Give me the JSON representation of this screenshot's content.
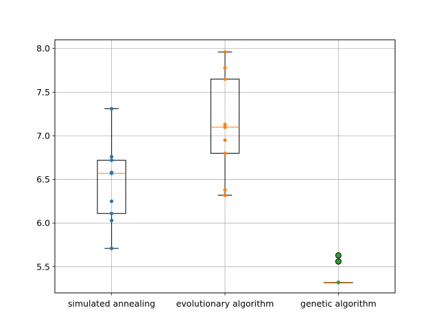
{
  "chart_data": {
    "type": "box",
    "title": "",
    "xlabel": "",
    "ylabel": "",
    "categories": [
      "simulated annealing",
      "evolutionary algorithm",
      "genetic algorithm"
    ],
    "ylim": [
      5.2,
      8.1
    ],
    "yticks": [
      5.5,
      6.0,
      6.5,
      7.0,
      7.5,
      8.0
    ],
    "ytick_labels": [
      "5.5",
      "6.0",
      "6.5",
      "7.0",
      "7.5",
      "8.0"
    ],
    "grid": true,
    "boxes": [
      {
        "category": "simulated annealing",
        "whislo": 5.71,
        "q1": 6.11,
        "med": 6.57,
        "q3": 6.72,
        "whishi": 7.31,
        "fliers": []
      },
      {
        "category": "evolutionary algorithm",
        "whislo": 6.32,
        "q1": 6.8,
        "med": 7.1,
        "q3": 7.65,
        "whishi": 7.96,
        "fliers": []
      },
      {
        "category": "genetic algorithm",
        "whislo": 5.32,
        "q1": 5.32,
        "med": 5.32,
        "q3": 5.32,
        "whishi": 5.32,
        "fliers": [
          5.56,
          5.63
        ]
      }
    ],
    "series": [
      {
        "category": "simulated annealing",
        "color": "#1f77b4",
        "values": [
          7.31,
          6.76,
          6.72,
          6.58,
          6.57,
          6.25,
          6.11,
          6.03,
          5.71
        ]
      },
      {
        "category": "evolutionary algorithm",
        "color": "#ff7f0e",
        "values": [
          7.96,
          7.78,
          7.65,
          7.13,
          7.1,
          6.95,
          6.8,
          6.38,
          6.32
        ]
      },
      {
        "category": "genetic algorithm",
        "color": "#2ca02c",
        "values": [
          5.32,
          5.32,
          5.32,
          5.32,
          5.32,
          5.32,
          5.32,
          5.56,
          5.63
        ]
      }
    ],
    "colors": {
      "box": "#000000",
      "median": "#ff7f0e",
      "grid": "#b0b0b0",
      "flier_fill": "#2ca02c"
    }
  }
}
